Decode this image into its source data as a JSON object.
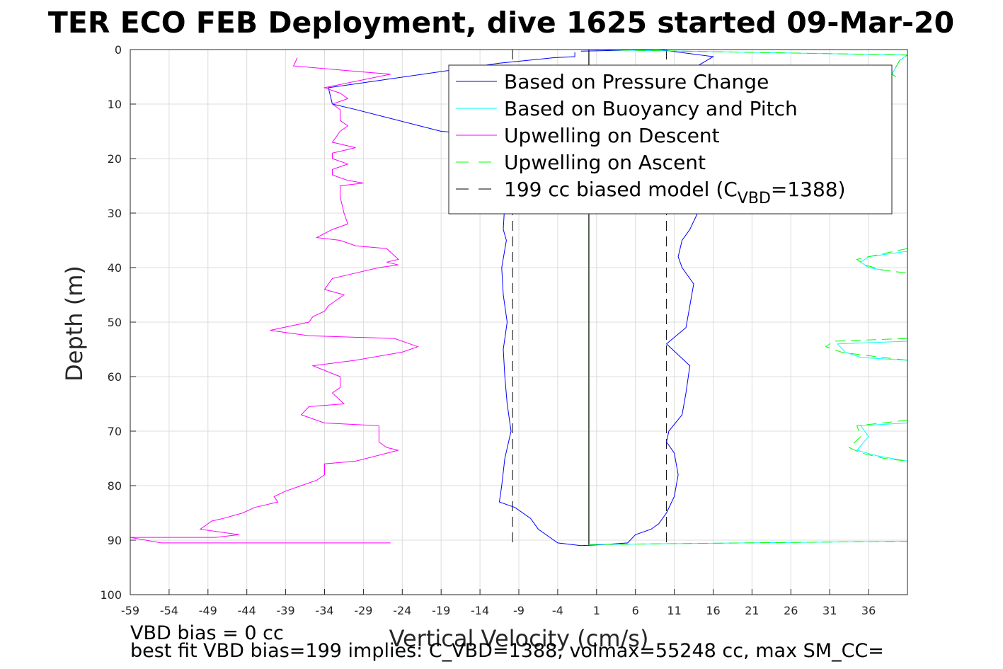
{
  "chart_data": {
    "type": "line",
    "title": "TER ECO FEB Deployment, dive 1625 started 09-Mar-20",
    "xlabel": "Vertical Velocity (cm/s)",
    "ylabel": "Depth (m)",
    "xlim": [
      -59,
      41
    ],
    "ylim": [
      0,
      100
    ],
    "y_reversed": true,
    "grid": true,
    "legend_placement": "top-right",
    "x_ticks": [
      "-59",
      "-54",
      "-49",
      "-44",
      "-39",
      "-34",
      "-29",
      "-24",
      "-19",
      "-14",
      "-9",
      "-4",
      "1",
      "6",
      "11",
      "16",
      "21",
      "26",
      "31",
      "36"
    ],
    "y_ticks": [
      "0",
      "10",
      "20",
      "30",
      "40",
      "50",
      "60",
      "70",
      "80",
      "90",
      "100"
    ],
    "legend": [
      {
        "name": "Based on Pressure Change",
        "color": "#0000ff",
        "dash": "solid"
      },
      {
        "name": "Based on Buoyancy and Pitch",
        "color": "#00ffff",
        "dash": "solid"
      },
      {
        "name": "Upwelling on Descent",
        "color": "#ff00ff",
        "dash": "solid"
      },
      {
        "name": "Upwelling on Ascent",
        "color": "#00ff00",
        "dash": "dashed"
      },
      {
        "name": "199 cc biased model (C",
        "name_sub": "VBD",
        "name_tail": "=1388)",
        "color": "#000000",
        "dash": "dashed"
      }
    ],
    "series": [
      {
        "name": "Based on Pressure Change",
        "color": "#0000ff",
        "dash": "solid",
        "points": [
          [
            -1.8,
            0.5
          ],
          [
            -1.8,
            1.3
          ],
          [
            -4.5,
            1.5
          ],
          [
            -11.5,
            2.5
          ],
          [
            -33.5,
            7
          ],
          [
            -33,
            10
          ],
          [
            -30,
            11
          ],
          [
            -19,
            15
          ],
          [
            -10,
            16
          ],
          [
            -10.5,
            22
          ],
          [
            -10.8,
            28
          ],
          [
            -11,
            33
          ],
          [
            -10.6,
            35
          ],
          [
            -11.2,
            40
          ],
          [
            -11,
            45
          ],
          [
            -10.5,
            50
          ],
          [
            -11,
            55
          ],
          [
            -10.8,
            60
          ],
          [
            -10.5,
            65
          ],
          [
            -10,
            70
          ],
          [
            -10.8,
            75
          ],
          [
            -11.2,
            80
          ],
          [
            -11.5,
            83
          ],
          [
            -9.5,
            84
          ],
          [
            -7.5,
            86
          ],
          [
            -6.5,
            88
          ],
          [
            -5,
            89.5
          ],
          [
            -4,
            90.5
          ],
          [
            -1,
            91
          ],
          [
            2,
            90.8
          ],
          [
            5,
            90.5
          ],
          [
            6,
            89
          ],
          [
            8,
            88
          ],
          [
            9,
            87
          ],
          [
            10,
            85
          ],
          [
            11,
            82
          ],
          [
            11.5,
            78
          ],
          [
            11,
            74
          ],
          [
            10,
            72
          ],
          [
            10.3,
            70
          ],
          [
            12,
            67
          ],
          [
            12.5,
            63
          ],
          [
            13,
            58
          ],
          [
            10,
            54
          ],
          [
            12.5,
            51
          ],
          [
            13,
            47
          ],
          [
            13.5,
            43
          ],
          [
            12,
            40
          ],
          [
            11.5,
            38
          ],
          [
            12,
            35
          ],
          [
            13,
            33
          ],
          [
            14,
            30
          ]
        ]
      },
      {
        "name": "Based on Pressure Change (surface)",
        "color": "#0000ff",
        "dash": "solid",
        "points": [
          [
            -1,
            0.3
          ],
          [
            9,
            0
          ],
          [
            16,
            1.3
          ],
          [
            14,
            3
          ]
        ]
      },
      {
        "name": "Based on Buoyancy and Pitch",
        "color": "#00ffff",
        "dash": "solid",
        "points": [
          [
            0,
            0
          ],
          [
            41,
            1
          ],
          [
            40,
            2
          ],
          [
            39,
            4.5
          ],
          [
            39.5,
            5
          ]
        ]
      },
      {
        "name": "Based on Buoyancy and Pitch 2",
        "color": "#00ffff",
        "dash": "solid",
        "points": [
          [
            41,
            37
          ],
          [
            36,
            38
          ],
          [
            35,
            39
          ],
          [
            36,
            40
          ],
          [
            38,
            40.5
          ]
        ]
      },
      {
        "name": "Based on Buoyancy and Pitch 3",
        "color": "#00ffff",
        "dash": "solid",
        "points": [
          [
            41,
            53.5
          ],
          [
            32,
            54
          ],
          [
            33,
            55.5
          ],
          [
            35,
            56.5
          ],
          [
            41,
            57
          ]
        ]
      },
      {
        "name": "Based on Buoyancy and Pitch 4",
        "color": "#00ffff",
        "dash": "solid",
        "points": [
          [
            41,
            68.5
          ],
          [
            35,
            69
          ],
          [
            36,
            71
          ],
          [
            34.5,
            73.5
          ],
          [
            37,
            74.5
          ],
          [
            41,
            75.5
          ]
        ]
      },
      {
        "name": "Based on Buoyancy and Pitch 5",
        "color": "#00ffff",
        "dash": "solid",
        "points": [
          [
            0,
            90.8
          ],
          [
            41,
            90.2
          ]
        ]
      },
      {
        "name": "Upwelling on Descent",
        "color": "#ff00ff",
        "dash": "solid",
        "points": [
          [
            -38,
            3
          ],
          [
            -37.5,
            1.5
          ],
          [
            -38,
            3
          ],
          [
            -30,
            4
          ],
          [
            -25.5,
            4.5
          ],
          [
            -34,
            7
          ],
          [
            -32,
            8
          ],
          [
            -31,
            9
          ],
          [
            -33,
            10
          ],
          [
            -32,
            11
          ],
          [
            -32,
            13
          ],
          [
            -31,
            14
          ],
          [
            -32,
            15
          ],
          [
            -33,
            17
          ],
          [
            -30,
            18
          ],
          [
            -33,
            19
          ],
          [
            -33,
            20
          ],
          [
            -31,
            21
          ],
          [
            -33,
            22
          ],
          [
            -33,
            23
          ],
          [
            -31,
            24
          ],
          [
            -29,
            24.5
          ],
          [
            -32,
            25
          ],
          [
            -32,
            27
          ],
          [
            -31.5,
            30
          ],
          [
            -31,
            32
          ],
          [
            -33,
            33
          ],
          [
            -35,
            34.5
          ],
          [
            -32,
            35
          ],
          [
            -30,
            36
          ],
          [
            -26,
            36.5
          ],
          [
            -24.5,
            38.5
          ],
          [
            -26,
            39
          ],
          [
            -24.5,
            39.5
          ],
          [
            -27,
            40
          ],
          [
            -30,
            41
          ],
          [
            -33,
            42
          ],
          [
            -34,
            44
          ],
          [
            -31.5,
            45
          ],
          [
            -33.5,
            47
          ],
          [
            -34,
            48
          ],
          [
            -35.5,
            49
          ],
          [
            -36,
            50
          ],
          [
            -41,
            51.5
          ],
          [
            -36,
            52.5
          ],
          [
            -25,
            53
          ],
          [
            -22,
            54.5
          ],
          [
            -24,
            55.5
          ],
          [
            -30,
            57
          ],
          [
            -35.5,
            58
          ],
          [
            -32,
            60
          ],
          [
            -32,
            62
          ],
          [
            -33,
            63
          ],
          [
            -31.5,
            65
          ],
          [
            -36,
            65.5
          ],
          [
            -37,
            67
          ],
          [
            -34,
            68.5
          ],
          [
            -27,
            69
          ],
          [
            -27,
            72
          ],
          [
            -26,
            73
          ],
          [
            -24.5,
            73.5
          ],
          [
            -30,
            75.5
          ],
          [
            -34,
            76
          ],
          [
            -34,
            78
          ],
          [
            -35,
            79
          ],
          [
            -37,
            80
          ],
          [
            -39,
            81
          ],
          [
            -40.5,
            82
          ],
          [
            -40,
            83
          ],
          [
            -43,
            84
          ],
          [
            -44.5,
            85
          ],
          [
            -47,
            86
          ],
          [
            -48.5,
            86.5
          ],
          [
            -50,
            88
          ],
          [
            -45,
            89
          ],
          [
            -48,
            89.5
          ],
          [
            -59,
            89.5
          ],
          [
            -55,
            90.5
          ],
          [
            -25.5,
            90.5
          ]
        ]
      },
      {
        "name": "Upwelling on Ascent",
        "color": "#00ff00",
        "dash": "dashed",
        "points": [
          [
            0,
            0
          ],
          [
            41,
            1
          ],
          [
            40,
            2
          ],
          [
            39,
            4.5
          ],
          [
            39.5,
            5
          ]
        ]
      },
      {
        "name": "Upwelling on Ascent 2",
        "color": "#00ff00",
        "dash": "dashed",
        "points": [
          [
            41,
            36.5
          ],
          [
            36,
            38
          ],
          [
            34.5,
            38.5
          ],
          [
            35.5,
            39.5
          ],
          [
            38,
            40.5
          ],
          [
            41,
            41
          ]
        ]
      },
      {
        "name": "Upwelling on Ascent 3",
        "color": "#00ff00",
        "dash": "dashed",
        "points": [
          [
            41,
            53
          ],
          [
            31.5,
            53.5
          ],
          [
            30.5,
            54.5
          ],
          [
            32.5,
            55.5
          ],
          [
            35,
            56
          ],
          [
            41,
            57
          ]
        ]
      },
      {
        "name": "Upwelling on Ascent 4",
        "color": "#00ff00",
        "dash": "dashed",
        "points": [
          [
            41,
            68
          ],
          [
            34.5,
            69
          ],
          [
            35,
            71
          ],
          [
            33.5,
            73
          ],
          [
            35,
            74
          ],
          [
            38,
            75
          ],
          [
            41,
            75.5
          ]
        ]
      },
      {
        "name": "Upwelling on Ascent 5",
        "color": "#00ff00",
        "dash": "dashed",
        "points": [
          [
            0,
            90.8
          ],
          [
            41,
            90.2
          ]
        ]
      }
    ],
    "reference_lines": [
      {
        "name": "biased model left",
        "color": "#000000",
        "dash": "dashed",
        "points": [
          [
            -9.8,
            0
          ],
          [
            -9.8,
            91
          ]
        ]
      },
      {
        "name": "biased model right",
        "color": "#000000",
        "dash": "dashed",
        "points": [
          [
            10,
            0
          ],
          [
            10,
            91
          ]
        ]
      },
      {
        "name": "zero line",
        "color": "#000000",
        "dash": "solid",
        "points": [
          [
            0,
            0
          ],
          [
            0,
            91
          ]
        ]
      },
      {
        "name": "zero line green",
        "color": "#00aa00",
        "dash": "solid",
        "points": [
          [
            0.05,
            0
          ],
          [
            0.05,
            91
          ]
        ]
      }
    ]
  },
  "notes": {
    "vbd_bias": "VBD bias = 0 cc",
    "best_fit": "best fit VBD bias=199 implies: C_VBD=1388, volmax=55248 cc, max SM_CC="
  }
}
